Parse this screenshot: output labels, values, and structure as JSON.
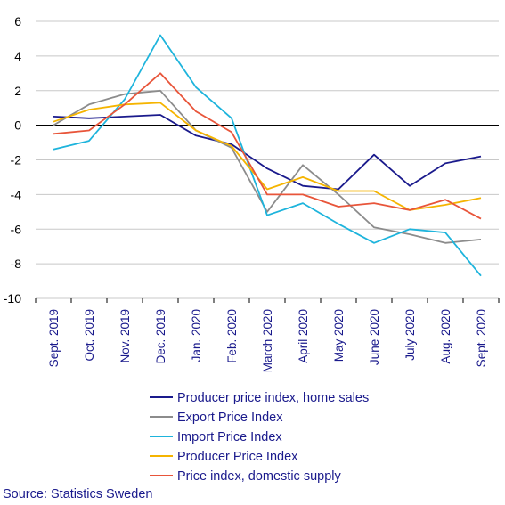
{
  "chart_data": {
    "type": "line",
    "categories": [
      "Sept. 2019",
      "Oct. 2019",
      "Nov. 2019",
      "Dec. 2019",
      "Jan. 2020",
      "Feb. 2020",
      "March 2020",
      "April 2020",
      "May 2020",
      "June 2020",
      "July 2020",
      "Aug. 2020",
      "Sept. 2020"
    ],
    "ylim": [
      -10,
      6
    ],
    "yticks": [
      6,
      4,
      2,
      0,
      -2,
      -4,
      -6,
      -8,
      -10
    ],
    "grid": "horizontal",
    "legend_position": "bottom",
    "series": [
      {
        "name": "Producer price index, home sales",
        "color": "#1a1a8c",
        "values": [
          0.5,
          0.4,
          0.5,
          0.6,
          -0.6,
          -1.1,
          -2.5,
          -3.5,
          -3.7,
          -1.7,
          -3.5,
          -2.2,
          -1.8
        ]
      },
      {
        "name": "Export Price Index",
        "color": "#8c8c8c",
        "values": [
          0.0,
          1.2,
          1.8,
          2.0,
          -0.3,
          -1.3,
          -5.0,
          -2.3,
          -4.0,
          -5.9,
          -6.3,
          -6.8,
          -6.6
        ]
      },
      {
        "name": "Import Price Index",
        "color": "#1eb4dc",
        "values": [
          -1.4,
          -0.9,
          1.5,
          5.2,
          2.2,
          0.4,
          -5.2,
          -4.5,
          -5.7,
          -6.8,
          -6.0,
          -6.2,
          -8.7
        ]
      },
      {
        "name": "Producer Price Index",
        "color": "#f5b400",
        "values": [
          0.2,
          0.9,
          1.2,
          1.3,
          -0.3,
          -1.2,
          -3.7,
          -3.0,
          -3.8,
          -3.8,
          -4.9,
          -4.6,
          -4.2
        ]
      },
      {
        "name": "Price index, domestic supply",
        "color": "#e8553a",
        "values": [
          -0.5,
          -0.3,
          1.2,
          3.0,
          0.8,
          -0.4,
          -4.0,
          -4.0,
          -4.7,
          -4.5,
          -4.9,
          -4.3,
          -5.4
        ]
      }
    ]
  },
  "source_text": "Source: Statistics Sweden"
}
